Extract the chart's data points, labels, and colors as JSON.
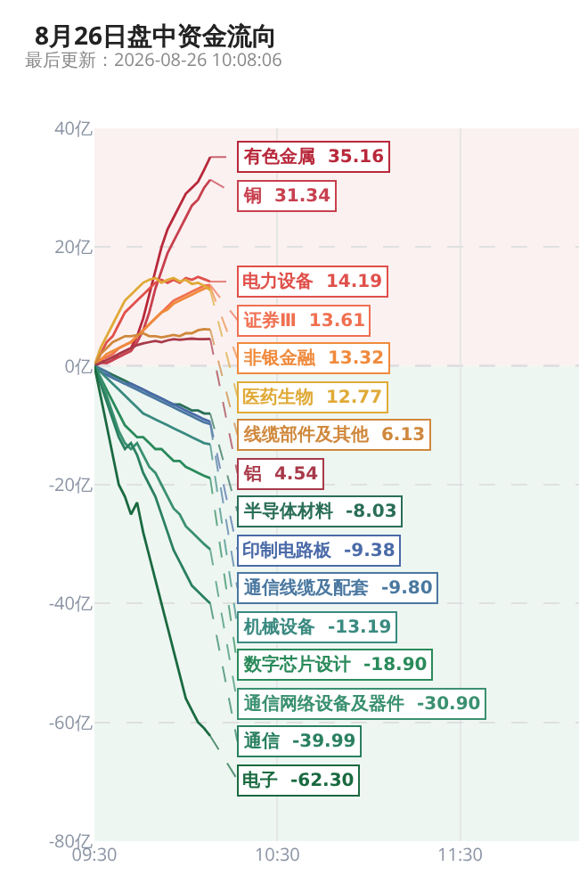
{
  "chart_data": {
    "type": "line",
    "title": "8月26日盘中资金流向",
    "subtitle": "最后更新：2026-08-26 10:08:06",
    "x": [
      9.5,
      9.5333,
      9.5667,
      9.6,
      9.6333,
      9.6667,
      9.7,
      9.7333,
      9.7667,
      9.8,
      9.8333,
      9.8667,
      9.9,
      9.9333,
      9.9667,
      10.0,
      10.0333,
      10.0667,
      10.1,
      10.1333
    ],
    "xlim": [
      9.5,
      12.15
    ],
    "xticks": [
      {
        "value": 9.5,
        "label": "09:30"
      },
      {
        "value": 10.5,
        "label": "10:30"
      },
      {
        "value": 11.5,
        "label": "11:30"
      }
    ],
    "ylim": [
      -80,
      40
    ],
    "yticks": [
      {
        "value": -80,
        "label": "-80亿"
      },
      {
        "value": -60,
        "label": "-60亿"
      },
      {
        "value": -40,
        "label": "-40亿"
      },
      {
        "value": -20,
        "label": "-20亿"
      },
      {
        "value": 0,
        "label": "0亿"
      },
      {
        "value": 20,
        "label": "20亿"
      },
      {
        "value": 40,
        "label": "40亿"
      }
    ],
    "grid": true,
    "line_style": "solid",
    "bands": [
      {
        "axis": "y",
        "from": 0,
        "to": 40,
        "color": "#fbf1f1"
      },
      {
        "axis": "y",
        "from": -80,
        "to": 0,
        "color": "#eef6f2"
      }
    ],
    "ref_lines": [
      {
        "axis": "y",
        "value": 0,
        "color": "#9aa8c0",
        "line_style": "dashed"
      }
    ],
    "series": [
      {
        "name": "有色金属",
        "color": "#b8283a",
        "values": [
          0,
          1,
          0.5,
          1,
          2,
          2.5,
          3,
          5,
          8,
          12,
          16,
          20,
          23,
          25,
          27,
          29,
          30,
          31,
          33,
          35.16
        ],
        "value_labels": [
          null,
          null,
          null,
          null,
          null,
          null,
          null,
          null,
          null,
          null,
          null,
          null,
          null,
          null,
          null,
          null,
          null,
          null,
          null,
          "35.16"
        ]
      },
      {
        "name": "铜",
        "color": "#c8404e",
        "values": [
          0,
          0.5,
          0.5,
          1,
          1.5,
          2,
          2.5,
          4,
          6,
          9,
          13,
          16,
          19,
          21,
          23,
          25,
          27,
          28,
          30,
          31.34
        ],
        "value_labels": [
          null,
          null,
          null,
          null,
          null,
          null,
          null,
          null,
          null,
          null,
          null,
          null,
          null,
          null,
          null,
          null,
          null,
          null,
          null,
          "31.34"
        ]
      },
      {
        "name": "电力设备",
        "color": "#e0504a",
        "values": [
          0,
          2,
          4,
          5,
          7,
          9,
          10,
          11,
          12,
          13,
          14,
          14.5,
          14,
          14.5,
          14,
          14.8,
          14.5,
          15,
          14.6,
          14.19
        ],
        "value_labels": [
          null,
          null,
          null,
          null,
          null,
          null,
          null,
          null,
          null,
          null,
          null,
          null,
          null,
          null,
          null,
          null,
          null,
          null,
          null,
          "14.19"
        ]
      },
      {
        "name": "证券Ⅲ",
        "color": "#f07050",
        "values": [
          0,
          1,
          1.5,
          2,
          3,
          3.5,
          4,
          5,
          6,
          7,
          8,
          9,
          10,
          11,
          11.5,
          12,
          12.5,
          13,
          13.5,
          13.61
        ],
        "value_labels": [
          null,
          null,
          null,
          null,
          null,
          null,
          null,
          null,
          null,
          null,
          null,
          null,
          null,
          null,
          null,
          null,
          null,
          null,
          null,
          "13.61"
        ]
      },
      {
        "name": "非银金融",
        "color": "#f08a3c",
        "values": [
          0,
          1,
          2,
          2.5,
          3,
          3.5,
          4,
          5,
          6,
          7,
          8,
          9,
          9.5,
          10.5,
          11,
          11.5,
          12,
          12.5,
          13,
          13.32
        ],
        "value_labels": [
          null,
          null,
          null,
          null,
          null,
          null,
          null,
          null,
          null,
          null,
          null,
          null,
          null,
          null,
          null,
          null,
          null,
          null,
          null,
          "13.32"
        ]
      },
      {
        "name": "医药生物",
        "color": "#e0aa38",
        "values": [
          0,
          3,
          5,
          7,
          9,
          11,
          12,
          13,
          14,
          14.5,
          14.8,
          14,
          14.5,
          14.8,
          14.2,
          14.5,
          13.8,
          14,
          13.5,
          12.77
        ],
        "value_labels": [
          null,
          null,
          null,
          null,
          null,
          null,
          null,
          null,
          null,
          null,
          null,
          null,
          null,
          null,
          null,
          null,
          null,
          null,
          null,
          "12.77"
        ]
      },
      {
        "name": "线缆部件及其他",
        "color": "#d0883c",
        "values": [
          0,
          2,
          3,
          4,
          4.5,
          5,
          5,
          5.2,
          5.5,
          5,
          5,
          4.8,
          5,
          5.2,
          5,
          5.5,
          5.5,
          6,
          6.2,
          6.13
        ],
        "value_labels": [
          null,
          null,
          null,
          null,
          null,
          null,
          null,
          null,
          null,
          null,
          null,
          null,
          null,
          null,
          null,
          null,
          null,
          null,
          null,
          "6.13"
        ]
      },
      {
        "name": "铝",
        "color": "#a83a4a",
        "values": [
          0,
          0.5,
          1,
          1.5,
          2,
          2.5,
          3,
          3.5,
          3.8,
          4,
          4.2,
          4,
          4.3,
          4.5,
          4.4,
          4.5,
          4.6,
          4.5,
          4.5,
          4.54
        ],
        "value_labels": [
          null,
          null,
          null,
          null,
          null,
          null,
          null,
          null,
          null,
          null,
          null,
          null,
          null,
          null,
          null,
          null,
          null,
          null,
          null,
          "4.54"
        ]
      },
      {
        "name": "半导体材料",
        "color": "#2a6e58",
        "values": [
          0,
          -0.5,
          -1,
          -1.5,
          -2,
          -2.5,
          -3,
          -3.5,
          -4,
          -4.5,
          -5,
          -5.5,
          -6,
          -6.5,
          -6.5,
          -7,
          -7.5,
          -7.5,
          -8,
          -8.03
        ],
        "value_labels": [
          null,
          null,
          null,
          null,
          null,
          null,
          null,
          null,
          null,
          null,
          null,
          null,
          null,
          null,
          null,
          null,
          null,
          null,
          null,
          "-8.03"
        ]
      },
      {
        "name": "印制电路板",
        "color": "#4a6aa8",
        "values": [
          0,
          -1,
          -1.5,
          -2,
          -2.5,
          -3,
          -3,
          -3.5,
          -4,
          -4.5,
          -5,
          -5.5,
          -6,
          -6.5,
          -7,
          -7.5,
          -8,
          -8.5,
          -9,
          -9.38
        ],
        "value_labels": [
          null,
          null,
          null,
          null,
          null,
          null,
          null,
          null,
          null,
          null,
          null,
          null,
          null,
          null,
          null,
          null,
          null,
          null,
          null,
          "-9.38"
        ]
      },
      {
        "name": "通信线缆及配套",
        "color": "#4a78a0",
        "values": [
          0,
          -0.5,
          -1,
          -2,
          -2.5,
          -3,
          -3.5,
          -4,
          -4.5,
          -5,
          -5.5,
          -6,
          -6.5,
          -7,
          -7.5,
          -8,
          -8.5,
          -9,
          -9.5,
          -9.8
        ],
        "value_labels": [
          null,
          null,
          null,
          null,
          null,
          null,
          null,
          null,
          null,
          null,
          null,
          null,
          null,
          null,
          null,
          null,
          null,
          null,
          null,
          "-9.80"
        ]
      },
      {
        "name": "机械设备",
        "color": "#3a8a80",
        "values": [
          0,
          -1,
          -2,
          -3,
          -4,
          -5,
          -6,
          -7,
          -8,
          -8.5,
          -9,
          -9.5,
          -10,
          -10.5,
          -11,
          -11.5,
          -12,
          -12.5,
          -13,
          -13.19
        ],
        "value_labels": [
          null,
          null,
          null,
          null,
          null,
          null,
          null,
          null,
          null,
          null,
          null,
          null,
          null,
          null,
          null,
          null,
          null,
          null,
          null,
          "-13.19"
        ]
      },
      {
        "name": "数字芯片设计",
        "color": "#2a8a5a",
        "values": [
          0,
          -2,
          -4,
          -6,
          -8,
          -10,
          -11,
          -12,
          -12,
          -13,
          -14,
          -14,
          -15,
          -16,
          -16,
          -17,
          -17.5,
          -18,
          -18.5,
          -18.9
        ],
        "value_labels": [
          null,
          null,
          null,
          null,
          null,
          null,
          null,
          null,
          null,
          null,
          null,
          null,
          null,
          null,
          null,
          null,
          null,
          null,
          null,
          "-18.90"
        ]
      },
      {
        "name": "通信网络设备及器件",
        "color": "#3a9070",
        "values": [
          0,
          -2,
          -5,
          -8,
          -11,
          -13,
          -14,
          -13,
          -15,
          -17,
          -18,
          -20,
          -22,
          -24,
          -25,
          -27,
          -28,
          -29,
          -30,
          -30.9
        ],
        "value_labels": [
          null,
          null,
          null,
          null,
          null,
          null,
          null,
          null,
          null,
          null,
          null,
          null,
          null,
          null,
          null,
          null,
          null,
          null,
          null,
          "-30.90"
        ]
      },
      {
        "name": "通信",
        "color": "#2a8060",
        "values": [
          0,
          -3,
          -6,
          -9,
          -12,
          -14,
          -13,
          -15,
          -18,
          -20,
          -22,
          -25,
          -28,
          -31,
          -33,
          -35,
          -37,
          -38,
          -39,
          -39.99
        ],
        "value_labels": [
          null,
          null,
          null,
          null,
          null,
          null,
          null,
          null,
          null,
          null,
          null,
          null,
          null,
          null,
          null,
          null,
          null,
          null,
          null,
          "-39.99"
        ]
      },
      {
        "name": "电子",
        "color": "#1a6a40",
        "values": [
          0,
          -5,
          -10,
          -15,
          -20,
          -22,
          -25,
          -23,
          -28,
          -32,
          -36,
          -40,
          -44,
          -48,
          -52,
          -56,
          -58,
          -60,
          -61,
          -62.3
        ],
        "value_labels": [
          null,
          null,
          null,
          null,
          null,
          null,
          null,
          null,
          null,
          null,
          null,
          null,
          null,
          null,
          null,
          null,
          null,
          null,
          null,
          "-62.30"
        ]
      }
    ]
  }
}
